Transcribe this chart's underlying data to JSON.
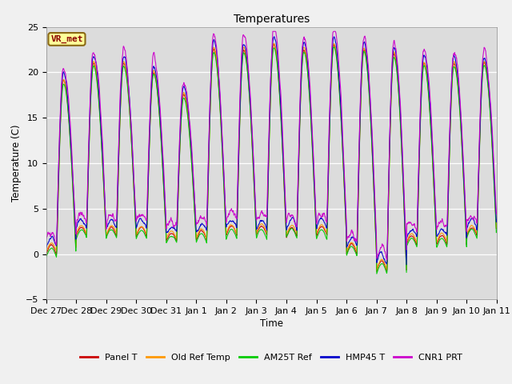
{
  "title": "Temperatures",
  "xlabel": "Time",
  "ylabel": "Temperature (C)",
  "ylim": [
    -5,
    25
  ],
  "plot_bg_color": "#dcdcdc",
  "fig_bg_color": "#f0f0f0",
  "legend_label": "VR_met",
  "legend_fg": "#8b0000",
  "legend_bg": "#ffff99",
  "legend_border": "#8b6914",
  "series": [
    "Panel T",
    "Old Ref Temp",
    "AM25T Ref",
    "HMP45 T",
    "CNR1 PRT"
  ],
  "colors": [
    "#cc0000",
    "#ff9900",
    "#00cc00",
    "#0000cc",
    "#cc00cc"
  ],
  "xtick_labels": [
    "Dec 27",
    "Dec 28",
    "Dec 29",
    "Dec 30",
    "Dec 31",
    "Jan 1",
    "Jan 2",
    "Jan 3",
    "Jan 4",
    "Jan 5",
    "Jan 6",
    "Jan 7",
    "Jan 8",
    "Jan 9",
    "Jan 10",
    "Jan 11"
  ],
  "n_points": 1440
}
